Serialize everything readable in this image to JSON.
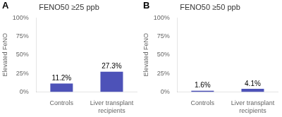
{
  "chart_data": [
    {
      "type": "bar",
      "panel_label": "A",
      "title": "FENO50 ≥25 ppb",
      "categories": [
        "Controls",
        "Liver transplant recipients"
      ],
      "values": [
        11.2,
        27.3
      ],
      "value_labels": [
        "11.2%",
        "27.3%"
      ],
      "data_labels": true,
      "ylabel": "Elevated FeNO",
      "ylim": [
        0,
        100
      ],
      "yticks": [
        {
          "value": 0,
          "label": "0%"
        },
        {
          "value": 25,
          "label": "25%"
        },
        {
          "value": 50,
          "label": "50%"
        },
        {
          "value": 75,
          "label": "75%"
        },
        {
          "value": 100,
          "label": "100%"
        }
      ],
      "color": "#4d52b8",
      "grid": false
    },
    {
      "type": "bar",
      "panel_label": "B",
      "title": "FENO50 ≥50 ppb",
      "categories": [
        "Controls",
        "Liver transplant recipients"
      ],
      "values": [
        1.6,
        4.1
      ],
      "value_labels": [
        "1.6%",
        "4.1%"
      ],
      "data_labels": true,
      "ylabel": "Elevated FeNO",
      "ylim": [
        0,
        100
      ],
      "yticks": [
        {
          "value": 0,
          "label": "0%"
        },
        {
          "value": 25,
          "label": "25%"
        },
        {
          "value": 50,
          "label": "50%"
        },
        {
          "value": 75,
          "label": "75%"
        },
        {
          "value": 100,
          "label": "100%"
        }
      ],
      "color": "#4d52b8",
      "grid": false
    }
  ]
}
